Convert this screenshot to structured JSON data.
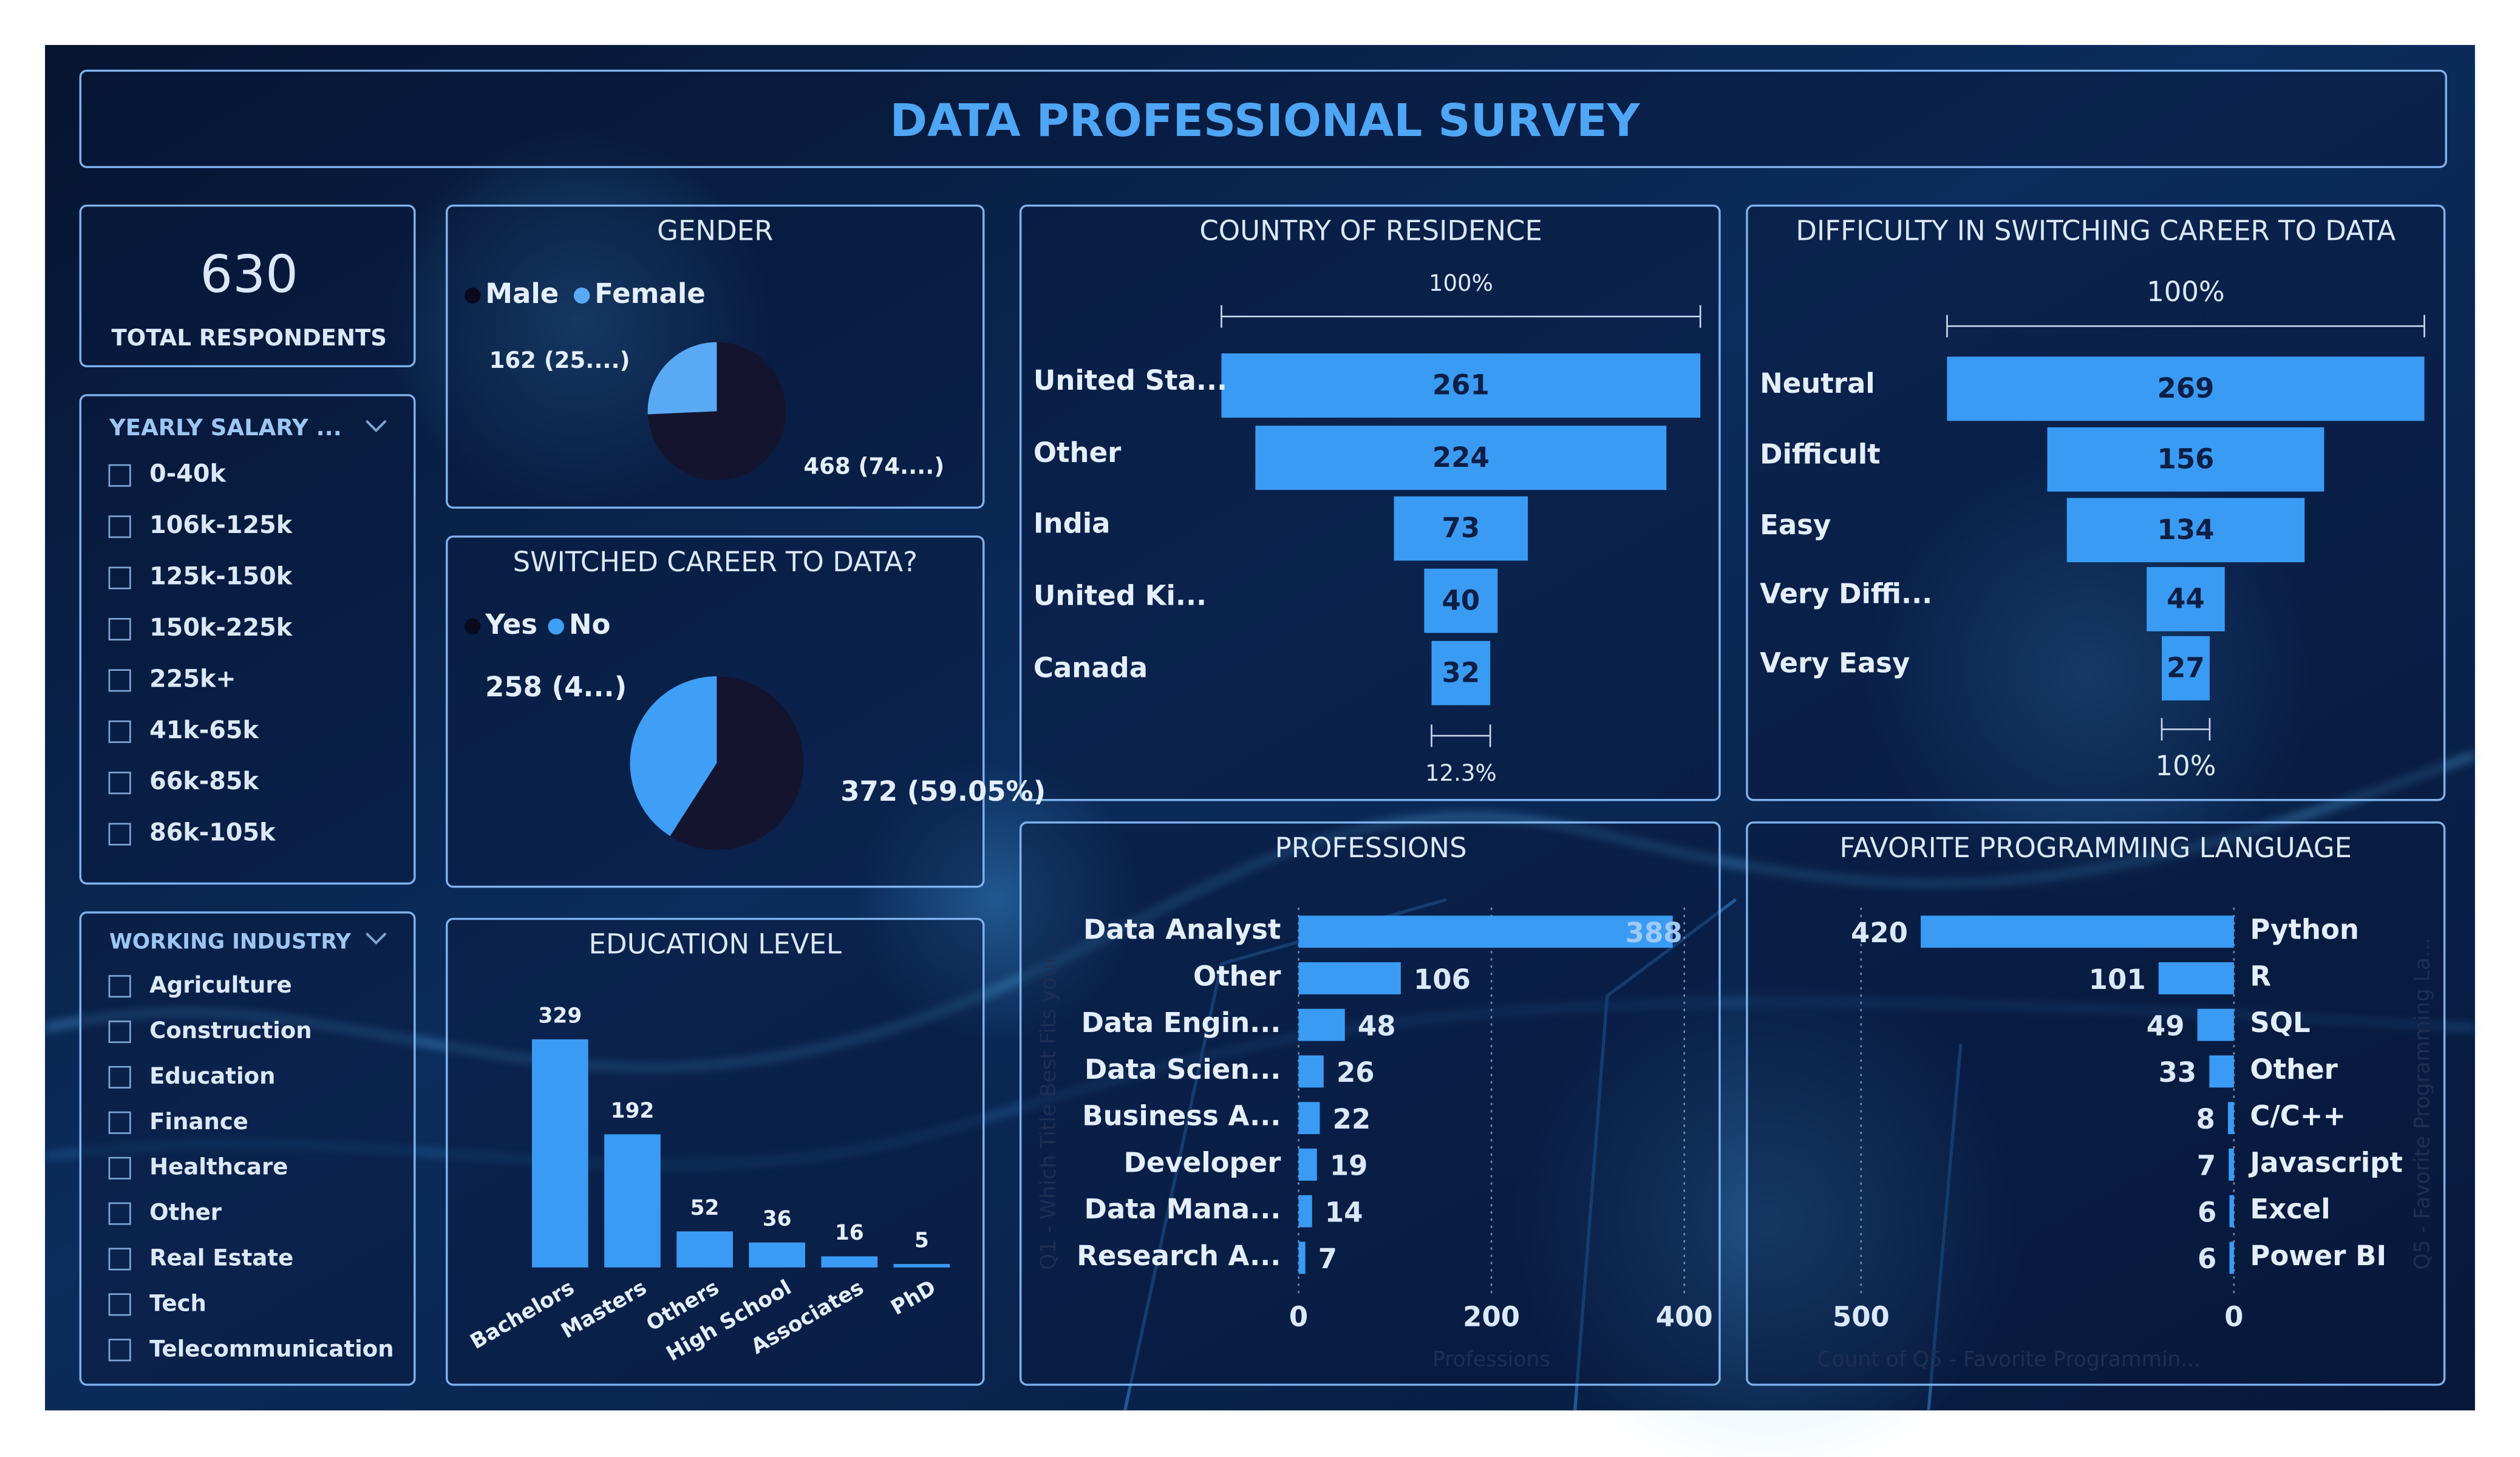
{
  "title": "DATA PROFESSIONAL SURVEY",
  "kpi": {
    "value": 630,
    "label": "TOTAL RESPONDENTS"
  },
  "salary_filter": {
    "title": "YEARLY SALARY ...",
    "items": [
      "0-40k",
      "106k-125k",
      "125k-150k",
      "150k-225k",
      "225k+",
      "41k-65k",
      "66k-85k",
      "86k-105k"
    ]
  },
  "industry_filter": {
    "title": "WORKING INDUSTRY",
    "items": [
      "Agriculture",
      "Construction",
      "Education",
      "Finance",
      "Healthcare",
      "Other",
      "Real Estate",
      "Tech",
      "Telecommunication"
    ]
  },
  "gender": {
    "type": "pie",
    "title": "GENDER",
    "categories": [
      "Male",
      "Female"
    ],
    "values": [
      468,
      162
    ],
    "value_labels": [
      "468 (74....)",
      "162 (25....)"
    ],
    "colors": [
      "#15142e",
      "#5aa9f5"
    ]
  },
  "switched": {
    "type": "pie",
    "title": "SWITCHED CAREER TO DATA?",
    "categories": [
      "Yes",
      "No"
    ],
    "values": [
      372,
      258
    ],
    "value_labels": [
      "372 (59.05%)",
      "258 (4...)"
    ],
    "colors": [
      "#15142e",
      "#3f9ef5"
    ]
  },
  "education": {
    "type": "bar",
    "title": "EDUCATION LEVEL",
    "categories": [
      "Bachelors",
      "Masters",
      "Others",
      "High School",
      "Associates",
      "PhD"
    ],
    "values": [
      329,
      192,
      52,
      36,
      16,
      5
    ],
    "color": "#3a9bf4"
  },
  "country": {
    "type": "funnel",
    "title": "COUNTRY OF RESIDENCE",
    "categories": [
      "United Sta...",
      "Other",
      "India",
      "United Ki...",
      "Canada"
    ],
    "values": [
      261,
      224,
      73,
      40,
      32
    ],
    "top_label": "100%",
    "bottom_label": "12.3%",
    "color": "#3a9bf4"
  },
  "difficulty": {
    "type": "funnel",
    "title": "DIFFICULTY IN SWITCHING CAREER TO DATA",
    "categories": [
      "Neutral",
      "Difficult",
      "Easy",
      "Very Diffi...",
      "Very Easy"
    ],
    "values": [
      269,
      156,
      134,
      44,
      27
    ],
    "top_label": "100%",
    "bottom_label": "10%",
    "color": "#3a9bf4"
  },
  "professions": {
    "type": "hbar",
    "title": "PROFESSIONS",
    "categories": [
      "Data Analyst",
      "Other",
      "Data Engin...",
      "Data Scien...",
      "Business A...",
      "Developer",
      "Data Mana...",
      "Research A..."
    ],
    "values": [
      388,
      106,
      48,
      26,
      22,
      19,
      14,
      7
    ],
    "xlim": [
      0,
      400
    ],
    "xticks": [
      0,
      200,
      400
    ],
    "xlabel": "Professions",
    "ylabel": "Q1 - Which Title Best Fits your...",
    "grid": true,
    "color": "#3a9bf4"
  },
  "languages": {
    "type": "hbar",
    "title": "FAVORITE PROGRAMMING LANGUAGE",
    "categories": [
      "Python",
      "R",
      "SQL",
      "Other",
      "C/C++",
      "Javascript",
      "Excel",
      "Power BI"
    ],
    "values": [
      420,
      101,
      49,
      33,
      8,
      7,
      6,
      6
    ],
    "xlim": [
      0,
      500
    ],
    "xticks": [
      500,
      0
    ],
    "reversed": true,
    "xlabel": "Count of Q5 - Favorite Programmin...",
    "ylabel": "Q5 - Favorite Programming La...",
    "grid": true,
    "color": "#3a9bf4"
  }
}
